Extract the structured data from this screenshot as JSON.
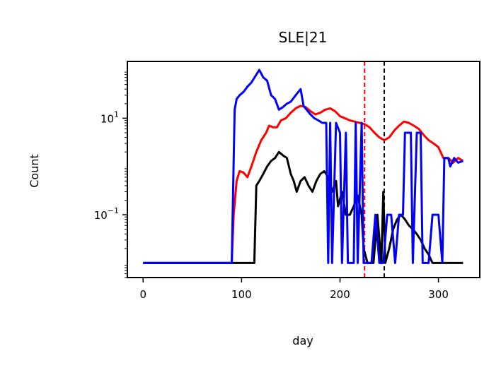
{
  "chart_data": {
    "type": "line",
    "title": "SLE|21",
    "xlabel": "day",
    "ylabel": "Count",
    "yscale": "log",
    "xlim": [
      -16,
      342
    ],
    "ylim": [
      0.005,
      150
    ],
    "x_ticks": [
      0,
      100,
      200,
      300
    ],
    "y_ticks": [
      {
        "value": 10,
        "base": "10",
        "exp": "1"
      },
      {
        "value": 0.1,
        "base": "10",
        "exp": "−1"
      }
    ],
    "grid": false,
    "legend": "none",
    "vlines": [
      {
        "x": 225,
        "color": "#ff0000",
        "style": "dashed"
      },
      {
        "x": 245,
        "color": "#000000",
        "style": "dashed"
      }
    ],
    "series": [
      {
        "color": "#ff0000",
        "points": [
          [
            0,
            0.01
          ],
          [
            90,
            0.01
          ],
          [
            92,
            0.1
          ],
          [
            95,
            0.5
          ],
          [
            98,
            0.8
          ],
          [
            102,
            0.75
          ],
          [
            106,
            0.6
          ],
          [
            110,
            1.0
          ],
          [
            115,
            2.0
          ],
          [
            120,
            3.5
          ],
          [
            125,
            5.0
          ],
          [
            128,
            7.0
          ],
          [
            132,
            6.5
          ],
          [
            136,
            6.5
          ],
          [
            140,
            9.0
          ],
          [
            145,
            10.0
          ],
          [
            150,
            13.0
          ],
          [
            155,
            16.0
          ],
          [
            160,
            18.0
          ],
          [
            165,
            17.0
          ],
          [
            170,
            14.0
          ],
          [
            175,
            12.0
          ],
          [
            180,
            13.0
          ],
          [
            185,
            15.0
          ],
          [
            190,
            16.0
          ],
          [
            195,
            14.0
          ],
          [
            200,
            11.0
          ],
          [
            205,
            10.0
          ],
          [
            210,
            9.0
          ],
          [
            215,
            8.5
          ],
          [
            220,
            8.0
          ],
          [
            225,
            7.5
          ],
          [
            230,
            6.5
          ],
          [
            235,
            5.0
          ],
          [
            240,
            4.0
          ],
          [
            245,
            3.5
          ],
          [
            250,
            4.0
          ],
          [
            255,
            5.5
          ],
          [
            260,
            7.0
          ],
          [
            265,
            8.5
          ],
          [
            270,
            8.0
          ],
          [
            275,
            7.0
          ],
          [
            280,
            6.0
          ],
          [
            285,
            4.5
          ],
          [
            290,
            3.5
          ],
          [
            295,
            3.0
          ],
          [
            300,
            2.5
          ],
          [
            305,
            1.5
          ],
          [
            310,
            1.5
          ],
          [
            315,
            1.2
          ],
          [
            320,
            1.5
          ],
          [
            325,
            1.3
          ]
        ]
      },
      {
        "color": "#000000",
        "points": [
          [
            0,
            0.01
          ],
          [
            113,
            0.01
          ],
          [
            115,
            0.4
          ],
          [
            118,
            0.5
          ],
          [
            122,
            0.7
          ],
          [
            126,
            1.0
          ],
          [
            130,
            1.3
          ],
          [
            134,
            1.5
          ],
          [
            138,
            2.0
          ],
          [
            142,
            1.7
          ],
          [
            146,
            1.5
          ],
          [
            150,
            0.7
          ],
          [
            153,
            0.5
          ],
          [
            156,
            0.3
          ],
          [
            160,
            0.5
          ],
          [
            164,
            0.6
          ],
          [
            168,
            0.4
          ],
          [
            172,
            0.3
          ],
          [
            176,
            0.5
          ],
          [
            180,
            0.7
          ],
          [
            184,
            0.8
          ],
          [
            188,
            0.6
          ],
          [
            192,
            0.3
          ],
          [
            196,
            0.5
          ],
          [
            198,
            0.15
          ],
          [
            202,
            0.3
          ],
          [
            206,
            0.1
          ],
          [
            210,
            0.1
          ],
          [
            214,
            0.15
          ],
          [
            218,
            0.25
          ],
          [
            222,
            0.1
          ],
          [
            224,
            0.02
          ],
          [
            228,
            0.01
          ],
          [
            234,
            0.01
          ],
          [
            238,
            0.1
          ],
          [
            242,
            0.01
          ],
          [
            244,
            0.3
          ],
          [
            246,
            0.01
          ],
          [
            250,
            0.02
          ],
          [
            254,
            0.05
          ],
          [
            258,
            0.08
          ],
          [
            262,
            0.1
          ],
          [
            266,
            0.08
          ],
          [
            270,
            0.06
          ],
          [
            274,
            0.05
          ],
          [
            278,
            0.04
          ],
          [
            282,
            0.03
          ],
          [
            286,
            0.02
          ],
          [
            290,
            0.015
          ],
          [
            294,
            0.01
          ],
          [
            325,
            0.01
          ]
        ]
      },
      {
        "color": "#0000ff",
        "points": [
          [
            0,
            0.01
          ],
          [
            90,
            0.01
          ],
          [
            93,
            15
          ],
          [
            95,
            25
          ],
          [
            98,
            30
          ],
          [
            102,
            35
          ],
          [
            106,
            45
          ],
          [
            110,
            55
          ],
          [
            115,
            80
          ],
          [
            118,
            100
          ],
          [
            122,
            70
          ],
          [
            126,
            60
          ],
          [
            130,
            30
          ],
          [
            134,
            25
          ],
          [
            138,
            15
          ],
          [
            142,
            17
          ],
          [
            146,
            20
          ],
          [
            150,
            22
          ],
          [
            155,
            30
          ],
          [
            160,
            40
          ],
          [
            163,
            18
          ],
          [
            166,
            15
          ],
          [
            170,
            12
          ],
          [
            174,
            10
          ],
          [
            178,
            9
          ],
          [
            182,
            8
          ],
          [
            186,
            8
          ],
          [
            188,
            0.01
          ],
          [
            190,
            8
          ],
          [
            192,
            0.01
          ],
          [
            196,
            8
          ],
          [
            200,
            5
          ],
          [
            202,
            0.01
          ],
          [
            206,
            5
          ],
          [
            208,
            0.01
          ],
          [
            214,
            0.01
          ],
          [
            216,
            8
          ],
          [
            218,
            0.01
          ],
          [
            222,
            8
          ],
          [
            224,
            0.01
          ],
          [
            228,
            0.01
          ],
          [
            232,
            0.01
          ],
          [
            236,
            0.1
          ],
          [
            240,
            0.01
          ],
          [
            244,
            0.01
          ],
          [
            248,
            0.1
          ],
          [
            252,
            0.1
          ],
          [
            256,
            0.01
          ],
          [
            260,
            0.1
          ],
          [
            264,
            0.1
          ],
          [
            266,
            5
          ],
          [
            272,
            5
          ],
          [
            274,
            0.01
          ],
          [
            278,
            5
          ],
          [
            282,
            5
          ],
          [
            284,
            0.01
          ],
          [
            290,
            0.01
          ],
          [
            294,
            0.1
          ],
          [
            300,
            0.1
          ],
          [
            304,
            0.01
          ],
          [
            306,
            1.5
          ],
          [
            310,
            1.5
          ],
          [
            312,
            1.0
          ],
          [
            316,
            1.5
          ],
          [
            320,
            1.2
          ],
          [
            325,
            1.3
          ]
        ]
      }
    ]
  }
}
